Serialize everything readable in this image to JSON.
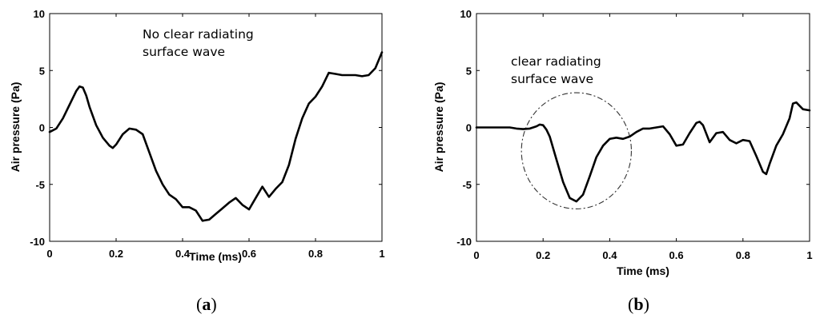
{
  "chart_data": [
    {
      "type": "line",
      "panel_label": "a",
      "xlabel": "Time (ms)",
      "ylabel": "Air pressure (Pa)",
      "xlim": [
        0,
        1
      ],
      "ylim": [
        -10,
        10
      ],
      "xticks": [
        "0",
        "0.2",
        "0.4",
        "0.6",
        "0.8",
        "1"
      ],
      "yticks": [
        "10",
        "5",
        "0",
        "-5",
        "-10"
      ],
      "grid": false,
      "annotation": [
        "No clear radiating",
        "surface wave"
      ],
      "series": [
        {
          "x": [
            0,
            0.02,
            0.04,
            0.06,
            0.08,
            0.09,
            0.1,
            0.11,
            0.12,
            0.14,
            0.16,
            0.18,
            0.19,
            0.2,
            0.22,
            0.24,
            0.26,
            0.28,
            0.3,
            0.32,
            0.34,
            0.36,
            0.38,
            0.4,
            0.42,
            0.44,
            0.46,
            0.48,
            0.5,
            0.52,
            0.54,
            0.56,
            0.58,
            0.6,
            0.62,
            0.64,
            0.66,
            0.68,
            0.7,
            0.72,
            0.74,
            0.76,
            0.78,
            0.8,
            0.82,
            0.84,
            0.86,
            0.88,
            0.9,
            0.92,
            0.94,
            0.96,
            0.98,
            1.0
          ],
          "y": [
            -0.4,
            -0.1,
            0.8,
            2.0,
            3.2,
            3.6,
            3.5,
            2.8,
            1.8,
            0.2,
            -0.9,
            -1.6,
            -1.8,
            -1.5,
            -0.6,
            -0.1,
            -0.2,
            -0.6,
            -2.2,
            -3.8,
            -5.0,
            -5.9,
            -6.3,
            -7.0,
            -7.0,
            -7.3,
            -8.2,
            -8.1,
            -7.6,
            -7.1,
            -6.6,
            -6.2,
            -6.8,
            -7.2,
            -6.2,
            -5.2,
            -6.1,
            -5.4,
            -4.8,
            -3.3,
            -1.0,
            0.8,
            2.1,
            2.7,
            3.6,
            4.8,
            4.7,
            4.6,
            4.6,
            4.6,
            4.5,
            4.6,
            5.2,
            6.6
          ]
        }
      ]
    },
    {
      "type": "line",
      "panel_label": "b",
      "xlabel": "Time (ms)",
      "ylabel": "Air pressure (Pa)",
      "xlim": [
        0,
        1
      ],
      "ylim": [
        -10,
        10
      ],
      "xticks": [
        "0",
        "0.2",
        "0.4",
        "0.6",
        "0.8",
        "1"
      ],
      "yticks": [
        "10",
        "5",
        "0",
        "-5",
        "-10"
      ],
      "grid": false,
      "annotation": [
        "clear radiating",
        "surface wave"
      ],
      "highlight_circle": {
        "center_x": 0.3,
        "center_y": -2.05,
        "radius_x": 0.165,
        "radius_y": 5.1
      },
      "series": [
        {
          "x": [
            0,
            0.1,
            0.12,
            0.14,
            0.16,
            0.18,
            0.19,
            0.2,
            0.21,
            0.22,
            0.24,
            0.26,
            0.28,
            0.3,
            0.32,
            0.34,
            0.36,
            0.38,
            0.4,
            0.42,
            0.44,
            0.46,
            0.48,
            0.5,
            0.52,
            0.54,
            0.56,
            0.58,
            0.6,
            0.62,
            0.64,
            0.66,
            0.67,
            0.68,
            0.7,
            0.72,
            0.74,
            0.76,
            0.78,
            0.8,
            0.82,
            0.84,
            0.86,
            0.87,
            0.88,
            0.9,
            0.92,
            0.94,
            0.95,
            0.96,
            0.98,
            1.0
          ],
          "y": [
            0,
            0,
            -0.1,
            -0.15,
            -0.1,
            0.1,
            0.25,
            0.2,
            -0.2,
            -0.8,
            -2.8,
            -4.8,
            -6.2,
            -6.5,
            -5.9,
            -4.3,
            -2.6,
            -1.6,
            -1.0,
            -0.9,
            -1.0,
            -0.8,
            -0.4,
            -0.1,
            -0.1,
            0.0,
            0.1,
            -0.6,
            -1.6,
            -1.5,
            -0.5,
            0.4,
            0.5,
            0.2,
            -1.3,
            -0.5,
            -0.4,
            -1.1,
            -1.4,
            -1.1,
            -1.2,
            -2.5,
            -3.9,
            -4.1,
            -3.2,
            -1.6,
            -0.6,
            0.8,
            2.1,
            2.2,
            1.6,
            1.5
          ]
        }
      ]
    }
  ]
}
